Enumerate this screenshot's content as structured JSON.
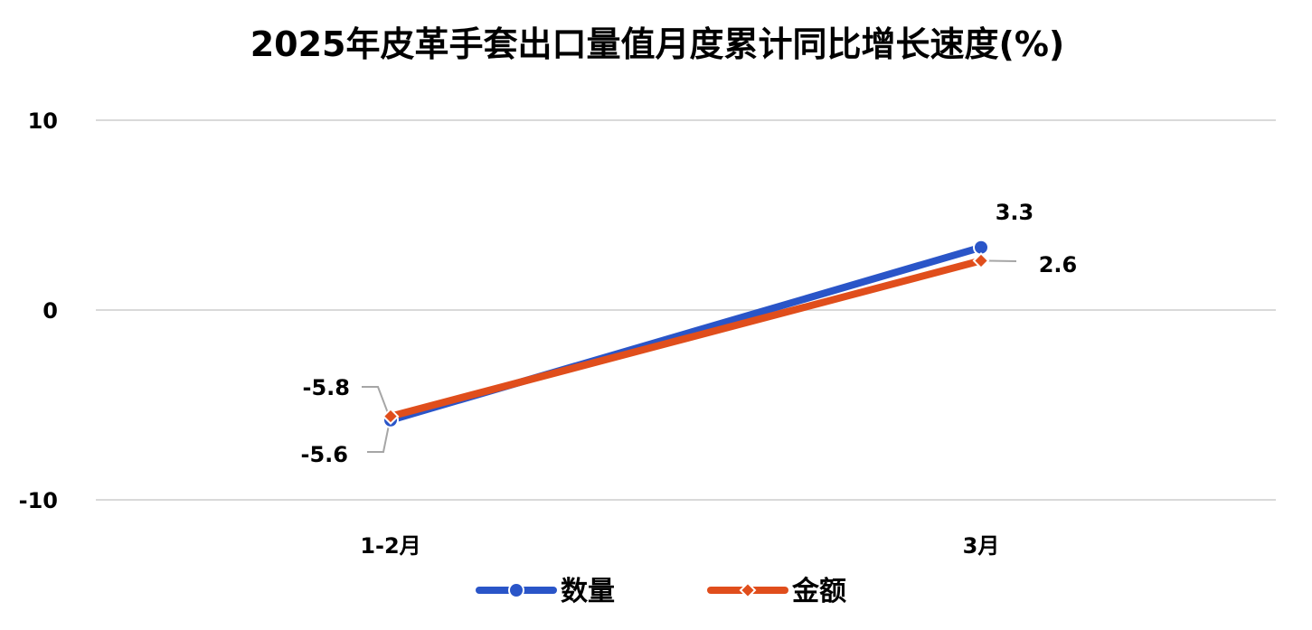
{
  "chart_data": {
    "type": "line",
    "title": "2025年皮革手套出口量值月度累计同比增长速度(%)",
    "xlabel": "",
    "ylabel": "",
    "categories": [
      "1-2月",
      "3月"
    ],
    "ylim": [
      -10,
      10
    ],
    "yticks": [
      10,
      0,
      -10
    ],
    "grid": true,
    "legend": "bottom",
    "series": [
      {
        "name": "数量",
        "values": [
          -5.8,
          3.3
        ],
        "labels": [
          "-5.8",
          "3.3"
        ],
        "color": "#2a55c8",
        "marker": "circle"
      },
      {
        "name": "金额",
        "values": [
          -5.6,
          2.6
        ],
        "labels": [
          "-5.6",
          "2.6"
        ],
        "color": "#e04e1c",
        "marker": "diamond"
      }
    ],
    "gridline_color": "#d9d9d9",
    "leader_line_color": "#a6a6a6"
  }
}
